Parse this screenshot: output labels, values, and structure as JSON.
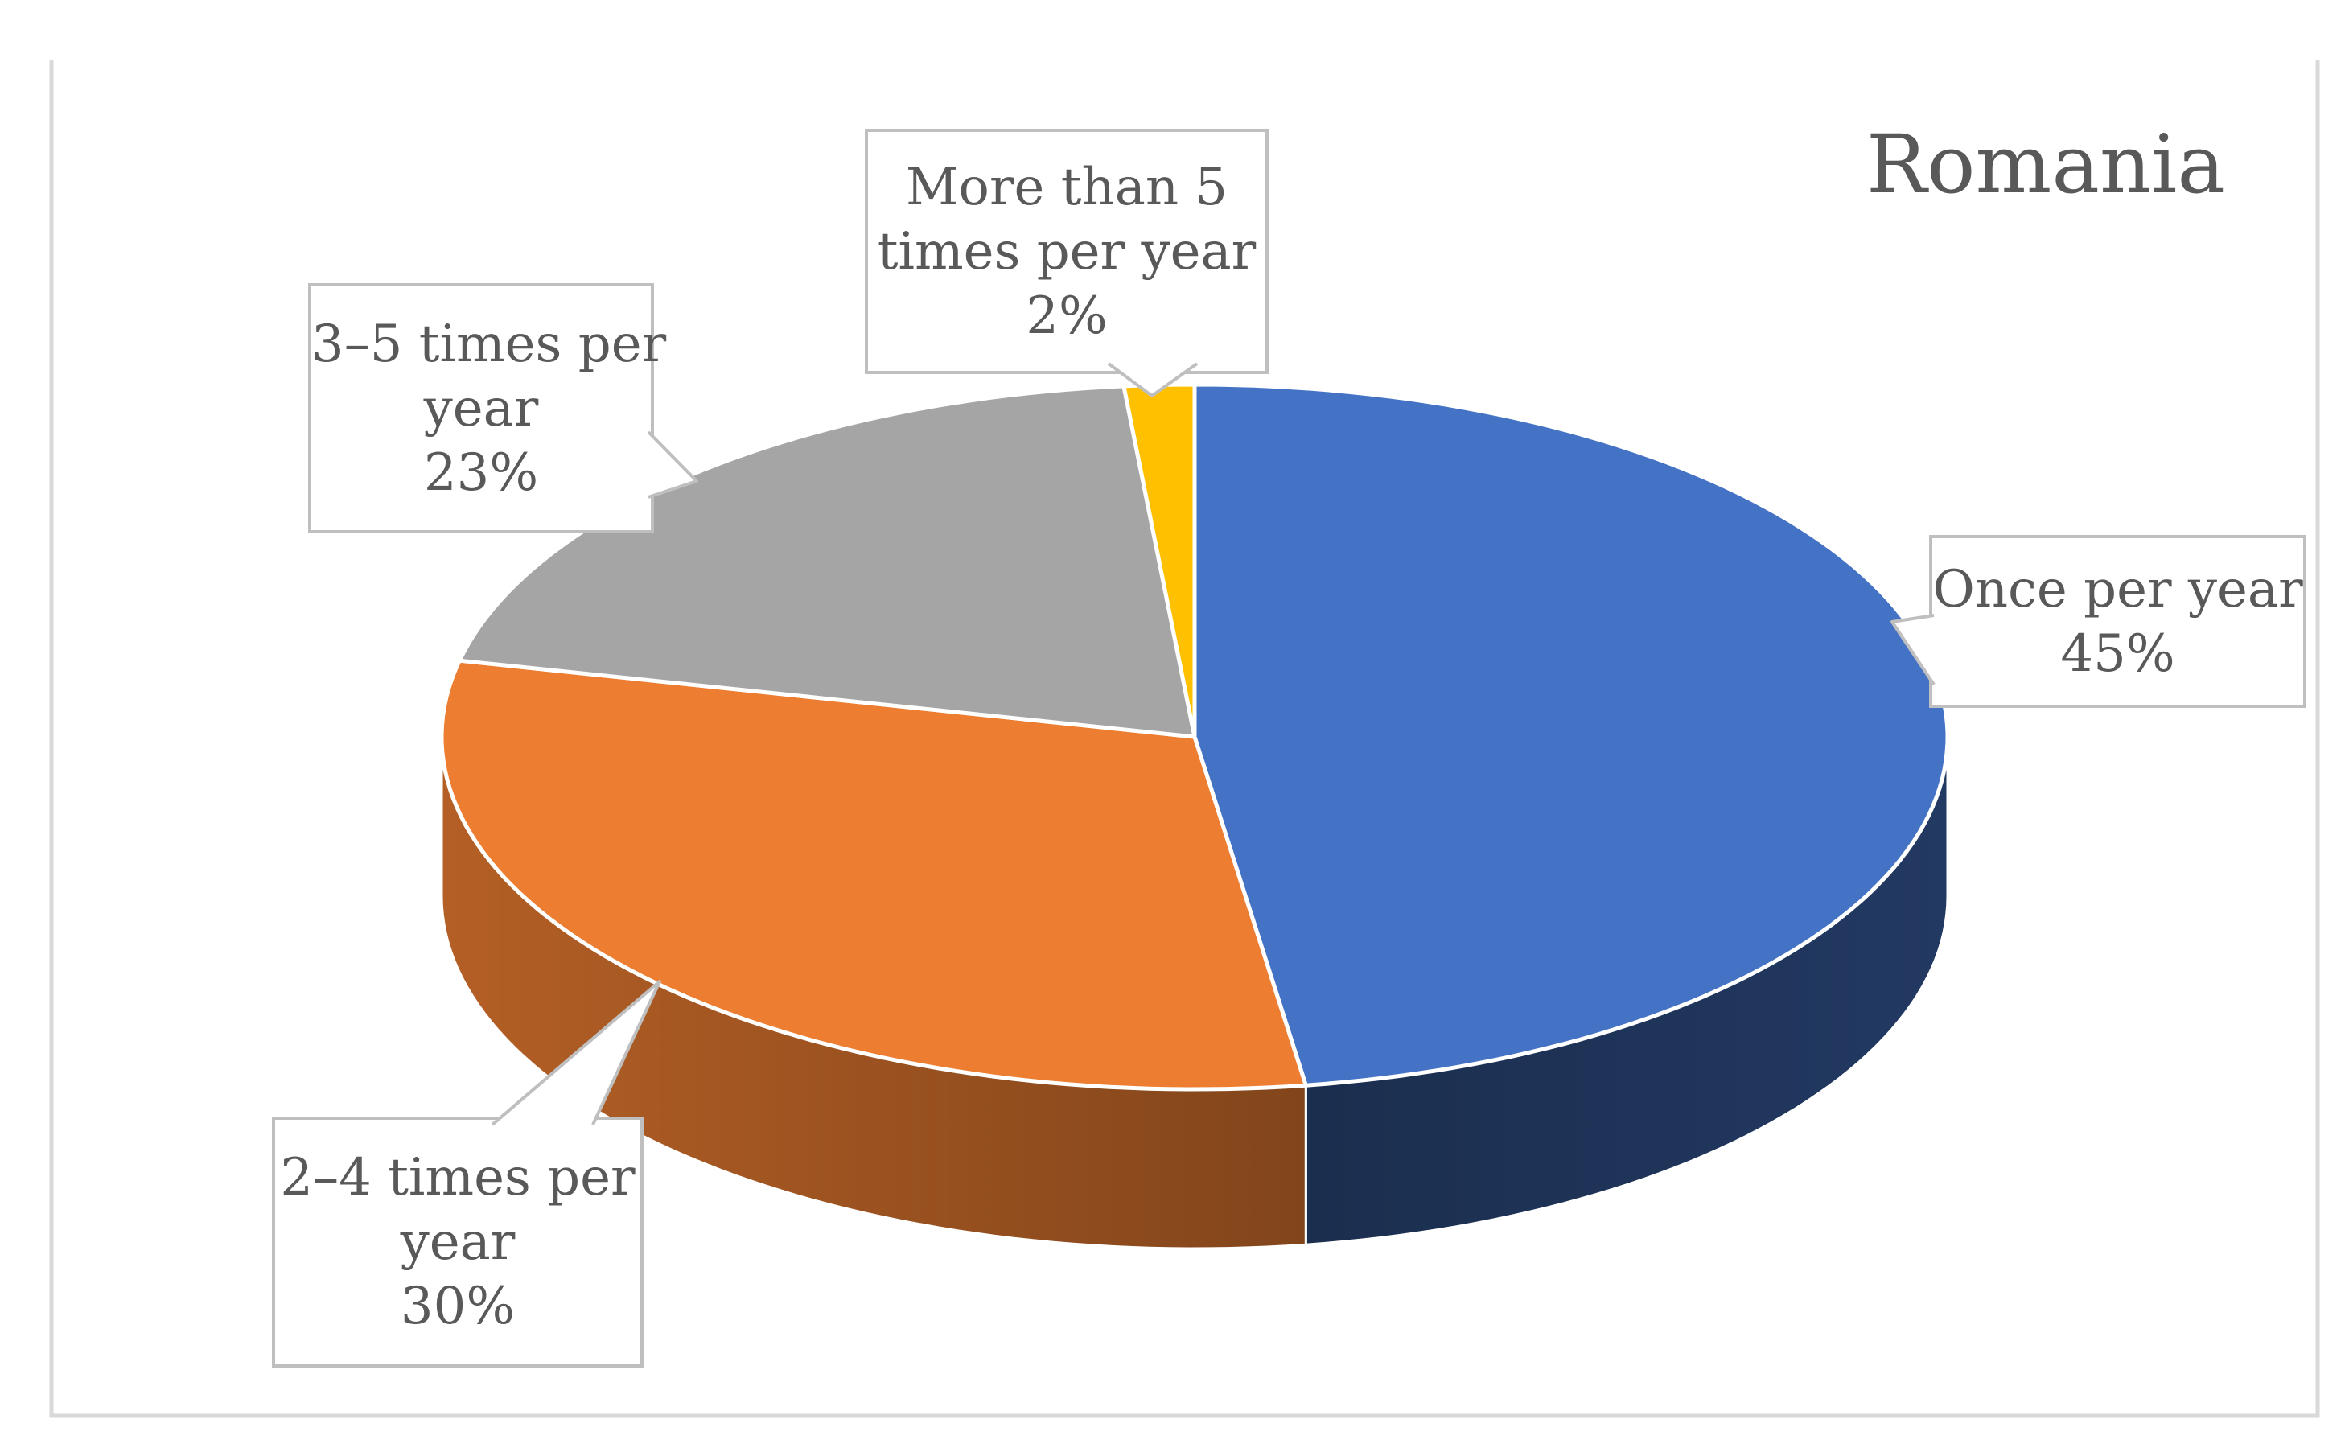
{
  "figure": {
    "title": "Romania",
    "text_color": "#595959",
    "plot_border_color": "#D9D9D9",
    "background": "#FFFFFF"
  },
  "callouts": {
    "fill": "#FFFFFF",
    "border_color": "#BFBFBF",
    "items": [
      {
        "id": "once",
        "lines": [
          "Once per year",
          "45%"
        ]
      },
      {
        "id": "two-four",
        "lines": [
          "2–4 times per",
          "year",
          "30%"
        ]
      },
      {
        "id": "three-five",
        "lines": [
          "3–5 times per",
          "year",
          "23%"
        ]
      },
      {
        "id": "more-than-five",
        "lines": [
          "More than 5",
          "times per year",
          "2%"
        ]
      }
    ]
  },
  "chart_data": {
    "type": "pie",
    "effect": "3d",
    "title": "Romania",
    "labels": [
      "Once per year",
      "2–4 times per year",
      "3–5 times per year",
      "More than 5 times per year"
    ],
    "values": [
      45,
      30,
      23,
      2
    ],
    "unit": "%",
    "colors": [
      "#4472C4",
      "#ED7D31",
      "#A5A5A5",
      "#FFC000"
    ],
    "start_angle_deg": 0,
    "direction": "clockwise",
    "legend": "none",
    "data_labels": "callouts with category name and percentage"
  }
}
